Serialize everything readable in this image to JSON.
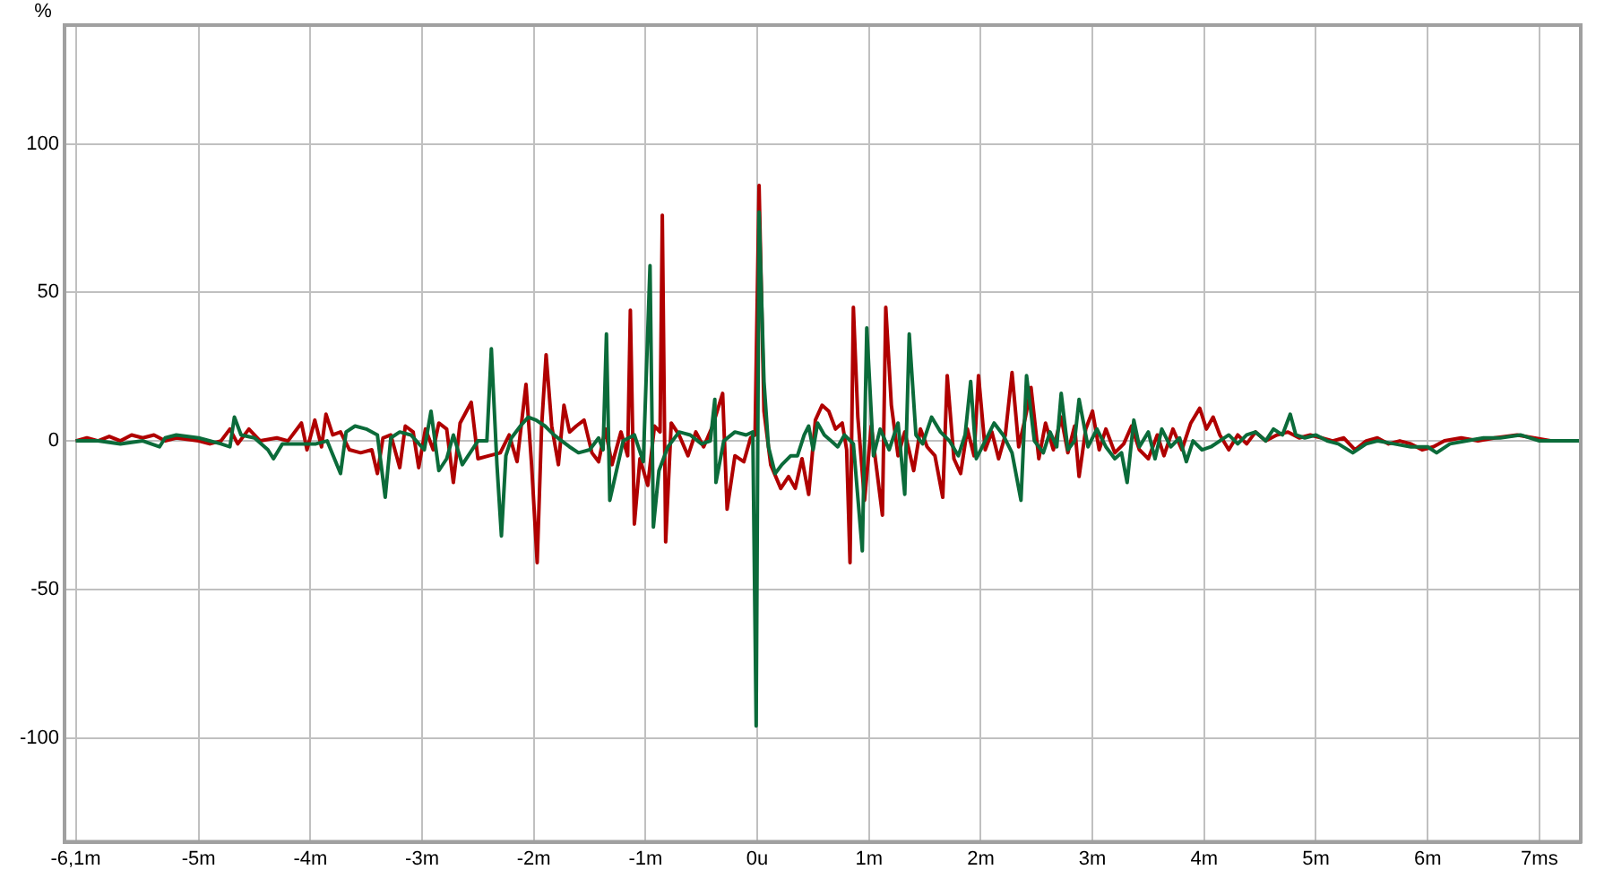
{
  "chart_data": {
    "type": "line",
    "ylabel": "%",
    "xlim": [
      -6.2,
      7.37
    ],
    "ylim": [
      -135,
      140
    ],
    "xticks": [
      {
        "value": -6.1,
        "label": "-6,1m"
      },
      {
        "value": -5,
        "label": "-5m"
      },
      {
        "value": -4,
        "label": "-4m"
      },
      {
        "value": -3,
        "label": "-3m"
      },
      {
        "value": -2,
        "label": "-2m"
      },
      {
        "value": -1,
        "label": "-1m"
      },
      {
        "value": 0,
        "label": "0u"
      },
      {
        "value": 1,
        "label": "1m"
      },
      {
        "value": 2,
        "label": "2m"
      },
      {
        "value": 3,
        "label": "3m"
      },
      {
        "value": 4,
        "label": "4m"
      },
      {
        "value": 5,
        "label": "5m"
      },
      {
        "value": 6,
        "label": "6m"
      },
      {
        "value": 7,
        "label": "7ms"
      }
    ],
    "yticks": [
      -100,
      -50,
      0,
      50,
      100
    ],
    "grid": true,
    "legend": false,
    "series": [
      {
        "color": "#b00000",
        "x": [
          -6.1,
          -6.0,
          -5.9,
          -5.8,
          -5.7,
          -5.6,
          -5.5,
          -5.4,
          -5.3,
          -5.2,
          -5.0,
          -4.9,
          -4.8,
          -4.72,
          -4.65,
          -4.55,
          -4.45,
          -4.3,
          -4.2,
          -4.08,
          -4.03,
          -3.96,
          -3.9,
          -3.86,
          -3.8,
          -3.73,
          -3.65,
          -3.55,
          -3.45,
          -3.4,
          -3.35,
          -3.28,
          -3.2,
          -3.15,
          -3.08,
          -3.03,
          -2.97,
          -2.9,
          -2.85,
          -2.78,
          -2.72,
          -2.66,
          -2.56,
          -2.5,
          -2.4,
          -2.3,
          -2.22,
          -2.15,
          -2.07,
          -2.02,
          -1.97,
          -1.93,
          -1.89,
          -1.84,
          -1.78,
          -1.73,
          -1.68,
          -1.62,
          -1.55,
          -1.48,
          -1.42,
          -1.36,
          -1.3,
          -1.22,
          -1.16,
          -1.136,
          -1.1,
          -1.05,
          -0.98,
          -0.92,
          -0.87,
          -0.85,
          -0.82,
          -0.77,
          -0.7,
          -0.62,
          -0.55,
          -0.48,
          -0.4,
          -0.31,
          -0.27,
          -0.2,
          -0.12,
          -0.06,
          -0.02,
          0.016,
          0.06,
          0.12,
          0.21,
          0.28,
          0.34,
          0.4,
          0.46,
          0.52,
          0.58,
          0.64,
          0.7,
          0.76,
          0.8,
          0.83,
          0.86,
          0.9,
          0.96,
          1.02,
          1.07,
          1.12,
          1.15,
          1.2,
          1.26,
          1.32,
          1.4,
          1.46,
          1.52,
          1.59,
          1.66,
          1.7,
          1.76,
          1.82,
          1.88,
          1.94,
          1.98,
          2.04,
          2.1,
          2.16,
          2.22,
          2.28,
          2.34,
          2.4,
          2.45,
          2.52,
          2.58,
          2.65,
          2.72,
          2.78,
          2.84,
          2.88,
          2.94,
          3.0,
          3.06,
          3.12,
          3.2,
          3.28,
          3.35,
          3.42,
          3.5,
          3.58,
          3.64,
          3.72,
          3.8,
          3.88,
          3.96,
          4.02,
          4.08,
          4.14,
          4.22,
          4.3,
          4.38,
          4.46,
          4.55,
          4.65,
          4.75,
          4.85,
          4.95,
          5.05,
          5.15,
          5.25,
          5.35,
          5.45,
          5.55,
          5.65,
          5.75,
          5.85,
          5.95,
          6.05,
          6.15,
          6.3,
          6.45,
          6.6,
          6.8,
          6.95,
          7.1,
          7.25,
          7.36
        ],
        "values": [
          0,
          1,
          0,
          1.5,
          0,
          2,
          1,
          2,
          0,
          1,
          0,
          -1,
          0,
          4,
          -1,
          4,
          0,
          1,
          0,
          6,
          -3,
          7,
          -2,
          9,
          2,
          3,
          -3,
          -4,
          -3,
          -11,
          1,
          2,
          -9,
          5,
          3,
          -9,
          4,
          -3,
          6,
          4,
          -14,
          6,
          13,
          -6,
          -5,
          -4,
          2,
          -7,
          19,
          -8,
          -41,
          5,
          29,
          5,
          -8,
          12,
          3,
          5,
          7,
          -4,
          -7,
          4,
          -8,
          3,
          -5,
          44,
          -28,
          -6,
          -15,
          5,
          3,
          76,
          -34,
          6,
          2,
          -5,
          3,
          -2,
          5,
          16,
          -23,
          -5,
          -7,
          1,
          2,
          86,
          10,
          -8,
          -16,
          -12,
          -16,
          -6,
          -18,
          7,
          12,
          10,
          4,
          6,
          -3,
          -41,
          45,
          8,
          -20,
          5,
          -10,
          -25,
          45,
          12,
          -5,
          3,
          -10,
          4,
          -2,
          -5,
          -19,
          22,
          -6,
          -11,
          4,
          -5,
          22,
          -3,
          3,
          -6,
          2,
          23,
          -2,
          8,
          18,
          -6,
          6,
          -3,
          8,
          -4,
          5,
          -12,
          4,
          10,
          -3,
          4,
          -4,
          -1,
          5,
          -3,
          -6,
          2,
          -5,
          4,
          -3,
          6,
          11,
          4,
          8,
          2,
          -3,
          2,
          -1,
          3,
          0,
          2,
          3,
          1,
          2,
          1,
          0,
          1,
          -3,
          0,
          1,
          -1,
          0,
          -1,
          -3,
          -2,
          0,
          1,
          0,
          1,
          2,
          1,
          0,
          0,
          0
        ]
      },
      {
        "color": "#0b6b3a",
        "x": [
          -6.1,
          -5.9,
          -5.7,
          -5.5,
          -5.35,
          -5.3,
          -5.2,
          -5.0,
          -4.8,
          -4.72,
          -4.68,
          -4.62,
          -4.5,
          -4.38,
          -4.33,
          -4.25,
          -4.1,
          -3.95,
          -3.85,
          -3.73,
          -3.68,
          -3.6,
          -3.5,
          -3.4,
          -3.33,
          -3.28,
          -3.2,
          -3.1,
          -2.98,
          -2.92,
          -2.85,
          -2.78,
          -2.72,
          -2.64,
          -2.5,
          -2.42,
          -2.38,
          -2.33,
          -2.29,
          -2.25,
          -2.2,
          -2.12,
          -2.05,
          -1.98,
          -1.9,
          -1.82,
          -1.75,
          -1.68,
          -1.6,
          -1.5,
          -1.42,
          -1.38,
          -1.35,
          -1.32,
          -1.26,
          -1.2,
          -1.1,
          -1.02,
          -0.96,
          -0.93,
          -0.88,
          -0.8,
          -0.7,
          -0.6,
          -0.5,
          -0.42,
          -0.38,
          -0.37,
          -0.3,
          -0.2,
          -0.1,
          -0.04,
          -0.01,
          0.016,
          0.06,
          0.1,
          0.16,
          0.22,
          0.3,
          0.36,
          0.42,
          0.46,
          0.5,
          0.54,
          0.6,
          0.66,
          0.72,
          0.78,
          0.86,
          0.94,
          0.98,
          1.04,
          1.1,
          1.18,
          1.26,
          1.32,
          1.36,
          1.42,
          1.48,
          1.56,
          1.64,
          1.72,
          1.8,
          1.86,
          1.91,
          1.96,
          2.04,
          2.12,
          2.2,
          2.28,
          2.36,
          2.41,
          2.48,
          2.56,
          2.62,
          2.68,
          2.72,
          2.78,
          2.84,
          2.88,
          2.96,
          3.04,
          3.12,
          3.2,
          3.26,
          3.31,
          3.37,
          3.42,
          3.5,
          3.56,
          3.62,
          3.7,
          3.78,
          3.84,
          3.9,
          3.98,
          4.06,
          4.14,
          4.22,
          4.3,
          4.38,
          4.46,
          4.55,
          4.62,
          4.7,
          4.77,
          4.82,
          4.9,
          5.0,
          5.1,
          5.2,
          5.33,
          5.45,
          5.55,
          5.7,
          5.85,
          6.0,
          6.08,
          6.2,
          6.35,
          6.5,
          6.65,
          6.83,
          7.0,
          7.15,
          7.36
        ],
        "values": [
          0,
          0,
          -1,
          0,
          -2,
          1,
          2,
          1,
          -1,
          -2,
          8,
          2,
          1,
          -3,
          -6,
          -1,
          -1,
          -1,
          0,
          -11,
          3,
          5,
          4,
          2,
          -19,
          1,
          3,
          2,
          -3,
          10,
          -10,
          -6,
          2,
          -8,
          0,
          0,
          31,
          -8,
          -32,
          -5,
          1,
          5,
          8,
          7,
          5,
          2,
          0,
          -2,
          -4,
          -3,
          1,
          -3,
          36,
          -20,
          -10,
          0,
          2,
          -7,
          59,
          -29,
          -10,
          -2,
          3,
          2,
          -1,
          0,
          14,
          -14,
          0,
          3,
          2,
          3,
          -96,
          77,
          20,
          -2,
          -11,
          -8,
          -5,
          -5,
          2,
          5,
          -3,
          6,
          2,
          0,
          -2,
          2,
          -1,
          -37,
          38,
          -5,
          4,
          -3,
          6,
          -18,
          36,
          2,
          -1,
          8,
          3,
          0,
          -5,
          2,
          20,
          -6,
          0,
          6,
          2,
          -4,
          -20,
          22,
          0,
          -4,
          3,
          -2,
          16,
          -3,
          0,
          14,
          -2,
          4,
          -2,
          -6,
          -4,
          -14,
          7,
          -2,
          3,
          -6,
          4,
          -2,
          1,
          -7,
          0,
          -3,
          -2,
          0,
          2,
          -1,
          2,
          3,
          0,
          4,
          2,
          9,
          2,
          1,
          2,
          0,
          -1,
          -4,
          -1,
          0,
          -1,
          -2,
          -2,
          -4,
          -1,
          0,
          1,
          1,
          2,
          0,
          0,
          0
        ]
      }
    ]
  }
}
